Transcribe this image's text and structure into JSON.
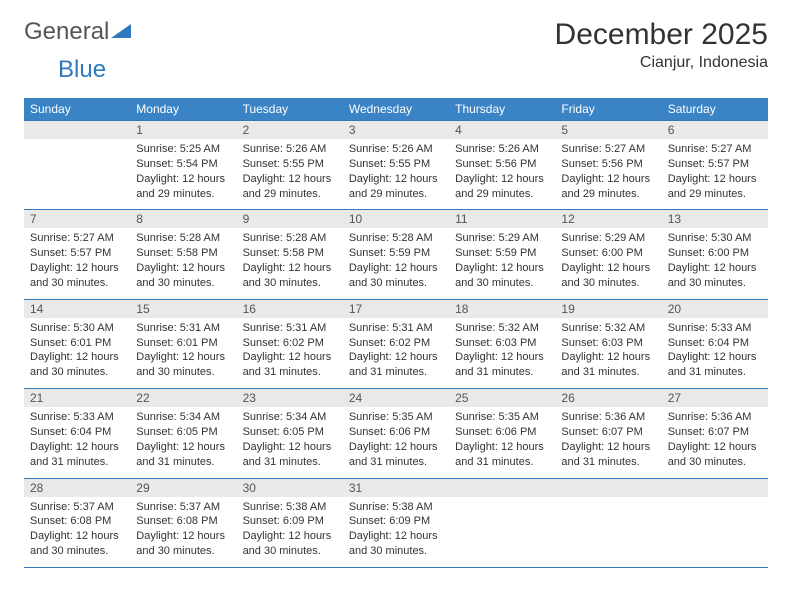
{
  "logo": {
    "word1": "General",
    "word2": "Blue"
  },
  "title": "December 2025",
  "location": "Cianjur, Indonesia",
  "colors": {
    "header_bg": "#3a83c5",
    "header_text": "#ffffff",
    "daynum_bg": "#e9e9e9",
    "daynum_text": "#555555",
    "border": "#2f78bd",
    "body_text": "#333333",
    "logo_gray": "#555555",
    "logo_blue": "#2f78bd",
    "page_bg": "#ffffff"
  },
  "weekdays": [
    "Sunday",
    "Monday",
    "Tuesday",
    "Wednesday",
    "Thursday",
    "Friday",
    "Saturday"
  ],
  "weeks": [
    [
      null,
      {
        "n": "1",
        "sr": "5:25 AM",
        "ss": "5:54 PM",
        "dl": "12 hours and 29 minutes."
      },
      {
        "n": "2",
        "sr": "5:26 AM",
        "ss": "5:55 PM",
        "dl": "12 hours and 29 minutes."
      },
      {
        "n": "3",
        "sr": "5:26 AM",
        "ss": "5:55 PM",
        "dl": "12 hours and 29 minutes."
      },
      {
        "n": "4",
        "sr": "5:26 AM",
        "ss": "5:56 PM",
        "dl": "12 hours and 29 minutes."
      },
      {
        "n": "5",
        "sr": "5:27 AM",
        "ss": "5:56 PM",
        "dl": "12 hours and 29 minutes."
      },
      {
        "n": "6",
        "sr": "5:27 AM",
        "ss": "5:57 PM",
        "dl": "12 hours and 29 minutes."
      }
    ],
    [
      {
        "n": "7",
        "sr": "5:27 AM",
        "ss": "5:57 PM",
        "dl": "12 hours and 30 minutes."
      },
      {
        "n": "8",
        "sr": "5:28 AM",
        "ss": "5:58 PM",
        "dl": "12 hours and 30 minutes."
      },
      {
        "n": "9",
        "sr": "5:28 AM",
        "ss": "5:58 PM",
        "dl": "12 hours and 30 minutes."
      },
      {
        "n": "10",
        "sr": "5:28 AM",
        "ss": "5:59 PM",
        "dl": "12 hours and 30 minutes."
      },
      {
        "n": "11",
        "sr": "5:29 AM",
        "ss": "5:59 PM",
        "dl": "12 hours and 30 minutes."
      },
      {
        "n": "12",
        "sr": "5:29 AM",
        "ss": "6:00 PM",
        "dl": "12 hours and 30 minutes."
      },
      {
        "n": "13",
        "sr": "5:30 AM",
        "ss": "6:00 PM",
        "dl": "12 hours and 30 minutes."
      }
    ],
    [
      {
        "n": "14",
        "sr": "5:30 AM",
        "ss": "6:01 PM",
        "dl": "12 hours and 30 minutes."
      },
      {
        "n": "15",
        "sr": "5:31 AM",
        "ss": "6:01 PM",
        "dl": "12 hours and 30 minutes."
      },
      {
        "n": "16",
        "sr": "5:31 AM",
        "ss": "6:02 PM",
        "dl": "12 hours and 31 minutes."
      },
      {
        "n": "17",
        "sr": "5:31 AM",
        "ss": "6:02 PM",
        "dl": "12 hours and 31 minutes."
      },
      {
        "n": "18",
        "sr": "5:32 AM",
        "ss": "6:03 PM",
        "dl": "12 hours and 31 minutes."
      },
      {
        "n": "19",
        "sr": "5:32 AM",
        "ss": "6:03 PM",
        "dl": "12 hours and 31 minutes."
      },
      {
        "n": "20",
        "sr": "5:33 AM",
        "ss": "6:04 PM",
        "dl": "12 hours and 31 minutes."
      }
    ],
    [
      {
        "n": "21",
        "sr": "5:33 AM",
        "ss": "6:04 PM",
        "dl": "12 hours and 31 minutes."
      },
      {
        "n": "22",
        "sr": "5:34 AM",
        "ss": "6:05 PM",
        "dl": "12 hours and 31 minutes."
      },
      {
        "n": "23",
        "sr": "5:34 AM",
        "ss": "6:05 PM",
        "dl": "12 hours and 31 minutes."
      },
      {
        "n": "24",
        "sr": "5:35 AM",
        "ss": "6:06 PM",
        "dl": "12 hours and 31 minutes."
      },
      {
        "n": "25",
        "sr": "5:35 AM",
        "ss": "6:06 PM",
        "dl": "12 hours and 31 minutes."
      },
      {
        "n": "26",
        "sr": "5:36 AM",
        "ss": "6:07 PM",
        "dl": "12 hours and 31 minutes."
      },
      {
        "n": "27",
        "sr": "5:36 AM",
        "ss": "6:07 PM",
        "dl": "12 hours and 30 minutes."
      }
    ],
    [
      {
        "n": "28",
        "sr": "5:37 AM",
        "ss": "6:08 PM",
        "dl": "12 hours and 30 minutes."
      },
      {
        "n": "29",
        "sr": "5:37 AM",
        "ss": "6:08 PM",
        "dl": "12 hours and 30 minutes."
      },
      {
        "n": "30",
        "sr": "5:38 AM",
        "ss": "6:09 PM",
        "dl": "12 hours and 30 minutes."
      },
      {
        "n": "31",
        "sr": "5:38 AM",
        "ss": "6:09 PM",
        "dl": "12 hours and 30 minutes."
      },
      null,
      null,
      null
    ]
  ],
  "labels": {
    "sunrise": "Sunrise:",
    "sunset": "Sunset:",
    "daylight": "Daylight:"
  }
}
